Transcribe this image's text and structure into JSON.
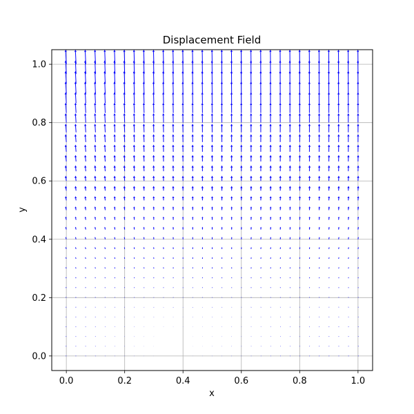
{
  "chart_data": {
    "type": "quiver",
    "title": "Displacement Field",
    "xlabel": "x",
    "ylabel": "y",
    "xlim": [
      -0.05,
      1.05
    ],
    "ylim": [
      -0.05,
      1.05
    ],
    "x_ticks": [
      "0.0",
      "0.2",
      "0.4",
      "0.6",
      "0.8",
      "1.0"
    ],
    "y_ticks": [
      "0.0",
      "0.2",
      "0.4",
      "0.6",
      "0.8",
      "1.0"
    ],
    "grid": true,
    "arrow_color": "#0000ff",
    "grid_color": "#b0b0b0",
    "field": {
      "nx": 31,
      "ny": 31,
      "x_range": [
        0,
        1
      ],
      "y_range": [
        0,
        1
      ],
      "u": "0.005*(x - 0.5) + 0.003*x*(1 - x) - 0.003*y*x",
      "v": "0.05*y*y"
    }
  }
}
